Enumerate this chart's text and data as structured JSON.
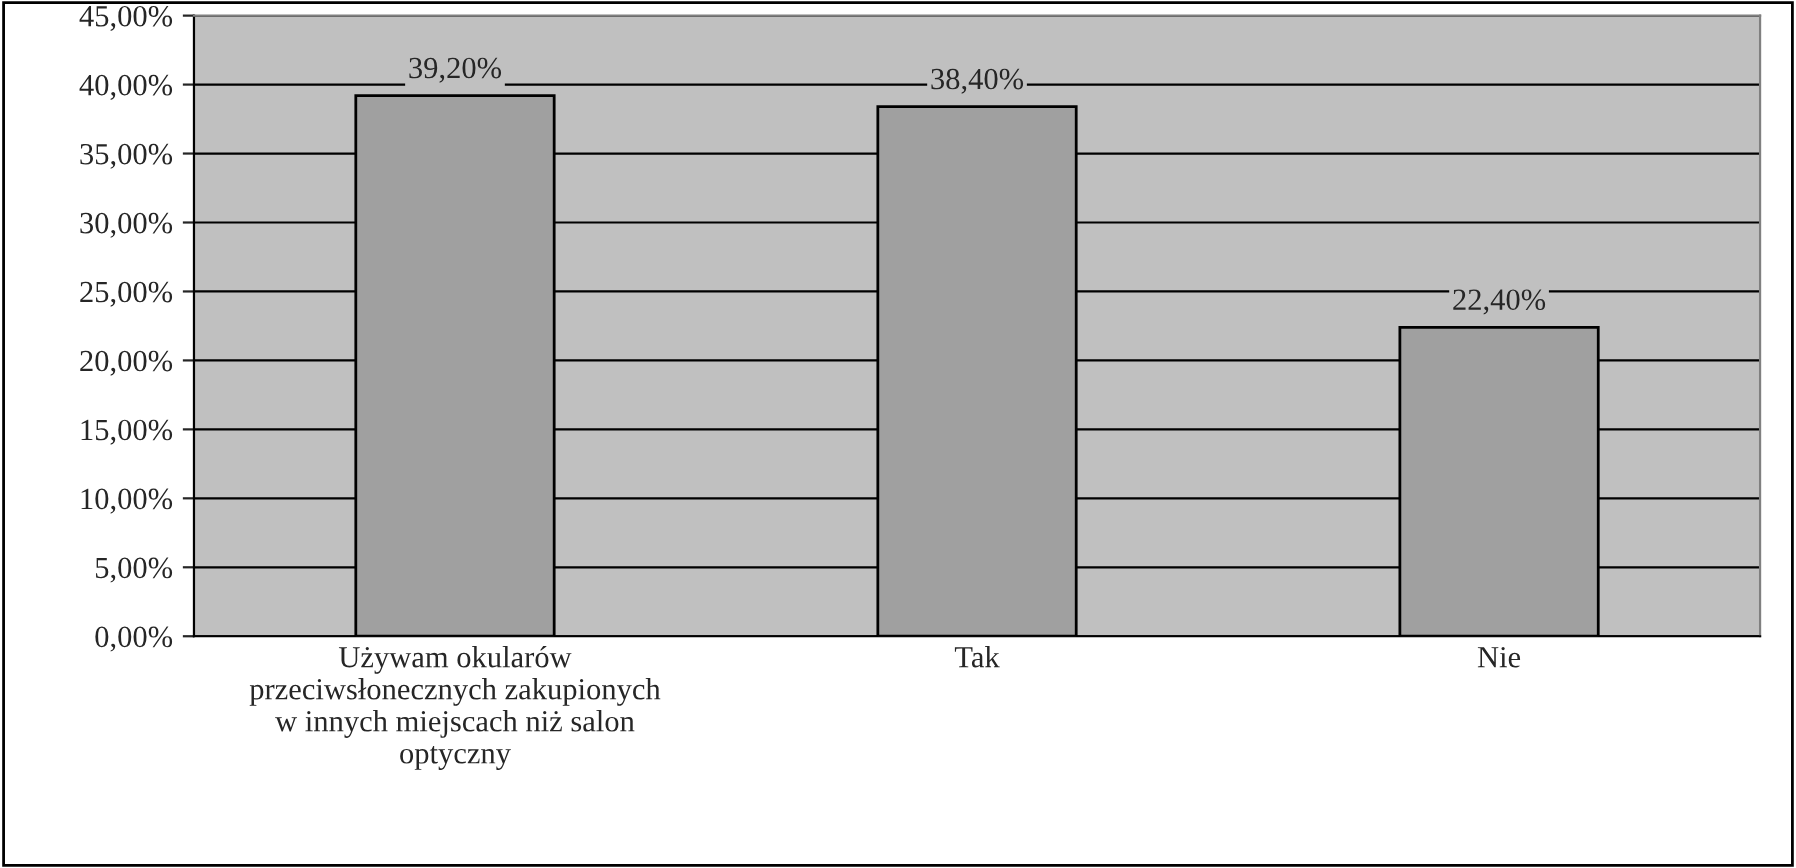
{
  "chart_data": {
    "type": "bar",
    "categories": [
      "Używam okularów\nprzeciwsłonecznych zakupionych\nw innych miejscach niż salon\noptyczny",
      "Tak",
      "Nie"
    ],
    "values": [
      39.2,
      38.4,
      22.4
    ],
    "value_labels": [
      "39,20%",
      "38,40%",
      "22,40%"
    ],
    "color": "#a0a0a0",
    "ylim": [
      0,
      45
    ],
    "yticks": [
      {
        "value": 0,
        "label": "0,00%"
      },
      {
        "value": 5,
        "label": "5,00%"
      },
      {
        "value": 10,
        "label": "10,00%"
      },
      {
        "value": 15,
        "label": "15,00%"
      },
      {
        "value": 20,
        "label": "20,00%"
      },
      {
        "value": 25,
        "label": "25,00%"
      },
      {
        "value": 30,
        "label": "30,00%"
      },
      {
        "value": 35,
        "label": "35,00%"
      },
      {
        "value": 40,
        "label": "40,00%"
      },
      {
        "value": 45,
        "label": "45,00%"
      }
    ],
    "grid": "y"
  }
}
